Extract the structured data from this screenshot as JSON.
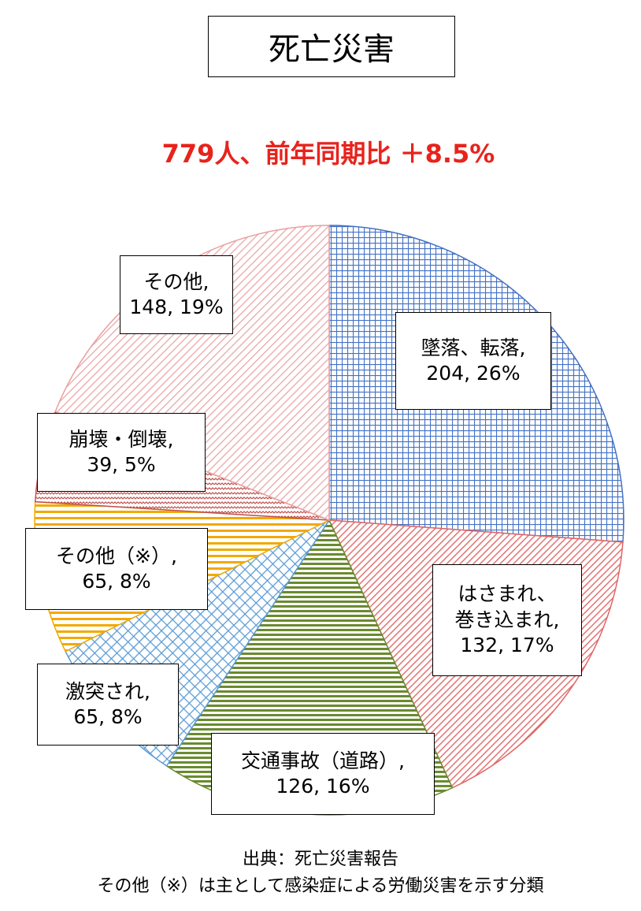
{
  "title": "死亡災害",
  "subtitle": "779人、前年同期比 ＋8.5%",
  "chart_data": {
    "type": "pie",
    "title": "死亡災害",
    "subtitle": "779人、前年同期比 ＋8.5%",
    "total": 779,
    "slices": [
      {
        "name": "墜落、転落",
        "value": 204,
        "percent": 26,
        "color": "#4472c4",
        "pattern": "grid"
      },
      {
        "name": "はさまれ、巻き込まれ",
        "value": 132,
        "percent": 17,
        "color": "#e06666",
        "pattern": "diag"
      },
      {
        "name": "交通事故（道路）",
        "value": 126,
        "percent": 16,
        "color": "#6a8a2f",
        "pattern": "hstripe"
      },
      {
        "name": "激突され",
        "value": 65,
        "percent": 8,
        "color": "#5b9bd5",
        "pattern": "lattice"
      },
      {
        "name": "その他（※）",
        "value": 65,
        "percent": 8,
        "color": "#f2a900",
        "pattern": "hstripe"
      },
      {
        "name": "崩壊・倒壊",
        "value": 39,
        "percent": 5,
        "color": "#c0504d",
        "pattern": "wave"
      },
      {
        "name": "その他",
        "value": 148,
        "percent": 19,
        "color": "#e8a0a0",
        "pattern": "diag"
      }
    ]
  },
  "labels": [
    {
      "line1": "墜落、転落,",
      "line2": "204, 26%"
    },
    {
      "line1": "はさまれ、",
      "line2": "巻き込まれ,",
      "line3": "132, 17%"
    },
    {
      "line1": "交通事故（道路）,",
      "line2": "126, 16%"
    },
    {
      "line1": "激突され,",
      "line2": "65, 8%"
    },
    {
      "line1": "その他（※）,",
      "line2": "65, 8%"
    },
    {
      "line1": "崩壊・倒壊,",
      "line2": "39, 5%"
    },
    {
      "line1": "その他,",
      "line2": "148, 19%"
    }
  ],
  "footer": {
    "source": "出典：死亡災害報告",
    "note": "その他（※）は主として感染症による労働災害を示す分類"
  }
}
